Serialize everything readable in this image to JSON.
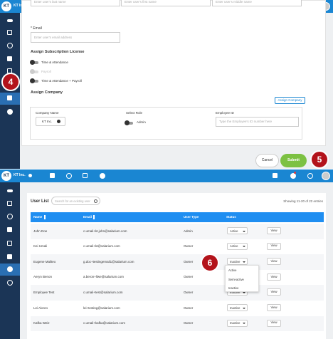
{
  "form": {
    "company": "KT Inc.",
    "last_name_placeholder": "Enter user's last name",
    "first_name_placeholder": "Enter user's first name",
    "middle_name_placeholder": "Enter user's middle name",
    "email_label": "* Email",
    "email_placeholder": "Enter user's email address",
    "license_heading": "Assign Subscription License",
    "licenses": [
      "Time & Attendance",
      "Payroll",
      "Time & Attendance + Payroll"
    ],
    "company_heading": "Assign Company",
    "assign_button": "Assign Company",
    "columns": [
      "Company Name",
      "Select Role",
      "Employee ID"
    ],
    "selected_company": "KT Inc.",
    "role": "Admin",
    "employee_id_placeholder": "Type the Employee's ID number here",
    "cancel": "Cancel",
    "submit": "Submit"
  },
  "logo": "KT",
  "steps": [
    "4",
    "5",
    "6"
  ],
  "user_list": {
    "company": "KT Inc.",
    "title": "User List",
    "search_placeholder": "Search for an existing user",
    "entries": "Showing 11-20 of 22 entries",
    "columns": [
      "Name",
      "Email",
      "User Type",
      "Status"
    ],
    "rows": [
      [
        "John Doe",
        "c.umali+kt.john@salarium.com",
        "Admin",
        "Active"
      ],
      [
        "Kei Umali",
        "c.umali+kt@salarium.com",
        "Owner",
        "Active"
      ],
      [
        "Eugene Maliteo",
        "g.doc+testingemail1@salarium.com",
        "Owner",
        "Inactive"
      ],
      [
        "Aeryn Benon",
        "a.beron+llwe@salarium.com",
        "Owner",
        null
      ],
      [
        "Employee Test",
        "c.umali+test@salarium.com",
        "Owner",
        "Inactive"
      ],
      [
        "Lei Alonro",
        "lei+testing@salarium.com",
        "Owner",
        "Inactive"
      ],
      [
        "Kafka Weiz",
        "c.umali+kafka@salarium.com",
        "Owner",
        "Inactive"
      ]
    ],
    "action": "View",
    "status_options": [
      "Active",
      "Semi-active",
      "Inactive"
    ]
  }
}
